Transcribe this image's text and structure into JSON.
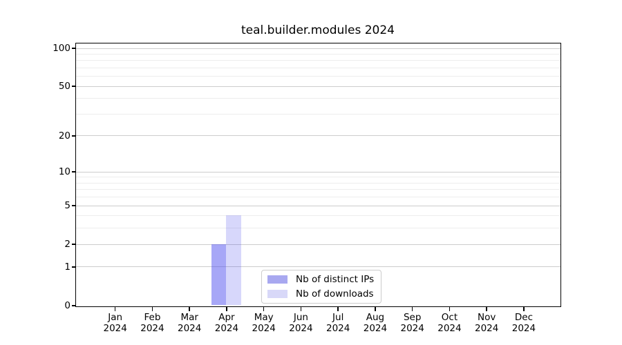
{
  "chart_data": {
    "type": "bar",
    "title": "teal.builder.modules 2024",
    "categories": [
      "Jan",
      "Feb",
      "Mar",
      "Apr",
      "May",
      "Jun",
      "Jul",
      "Aug",
      "Sep",
      "Oct",
      "Nov",
      "Dec"
    ],
    "category_year": "2024",
    "series": [
      {
        "name": "Nb of distinct IPs",
        "legend_swatch": "#a8a8f0",
        "fill": "rgba(68,68,238,0.47)",
        "values": [
          0,
          0,
          0,
          2,
          0,
          0,
          0,
          0,
          0,
          0,
          0,
          0
        ]
      },
      {
        "name": "Nb of downloads",
        "legend_swatch": "#d8d8f8",
        "fill": "rgba(68,68,238,0.21)",
        "values": [
          0,
          0,
          0,
          4,
          0,
          0,
          0,
          0,
          0,
          0,
          0,
          0
        ]
      }
    ],
    "xlabel": "",
    "ylabel": "",
    "yscale": "log1p",
    "ylim": [
      0,
      109
    ],
    "yticks": [
      0,
      1,
      2,
      5,
      10,
      20,
      50,
      100
    ],
    "minor_gridlines": [
      3,
      4,
      6,
      7,
      8,
      9,
      30,
      40,
      60,
      70,
      80,
      90
    ],
    "grid": true,
    "legend_position": "lower center",
    "colors": {
      "axis": "#000000",
      "major_grid": "#cccccc",
      "minor_grid": "#ededed",
      "legend_border": "#cccccc",
      "background": "#ffffff"
    }
  }
}
